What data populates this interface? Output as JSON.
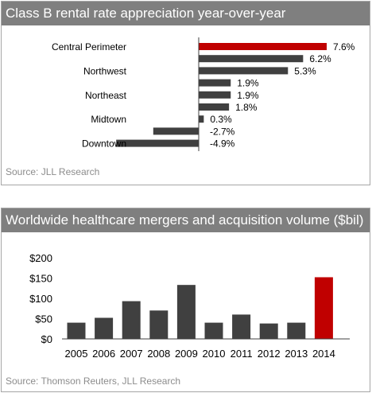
{
  "colors": {
    "bar": "#404040",
    "highlight": "#c00000",
    "title_bg": "#7f7f7f"
  },
  "chart_data": [
    {
      "type": "bar",
      "orientation": "horizontal",
      "title": "Class B rental rate appreciation year-over-year",
      "source": "Source: JLL Research",
      "categories": [
        "Central Perimeter",
        "",
        "Northwest",
        "",
        "Northeast",
        "",
        "Midtown",
        "",
        "Downtown"
      ],
      "values": [
        7.6,
        6.2,
        5.3,
        1.9,
        1.9,
        1.8,
        0.3,
        -2.7,
        -4.9
      ],
      "data_labels": [
        "7.6%",
        "6.2%",
        "5.3%",
        "1.9%",
        "1.9%",
        "1.8%",
        "0.3%",
        "-2.7%",
        "-4.9%"
      ],
      "highlight_index": 0,
      "xlim": [
        -4.9,
        7.6
      ],
      "grid": false
    },
    {
      "type": "bar",
      "orientation": "vertical",
      "title": "Worldwide healthcare mergers and acquisition volume ($bil)",
      "source": "Source: Thomson Reuters, JLL Research",
      "categories": [
        "2005",
        "2006",
        "2007",
        "2008",
        "2009",
        "2010",
        "2011",
        "2012",
        "2013",
        "2014"
      ],
      "values": [
        40,
        52,
        93,
        70,
        133,
        40,
        60,
        38,
        40,
        152
      ],
      "yticks": [
        "$200",
        "$150",
        "$100",
        "$50",
        "$0"
      ],
      "ytick_values": [
        200,
        150,
        100,
        50,
        0
      ],
      "ylim": [
        0,
        200
      ],
      "highlight_index": 9,
      "grid": false
    }
  ]
}
